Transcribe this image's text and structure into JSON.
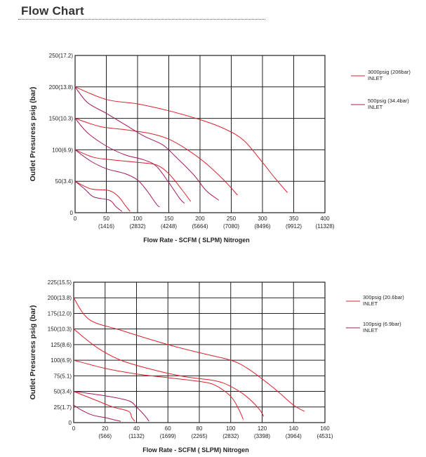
{
  "page": {
    "title": "Flow Chart"
  },
  "colors": {
    "hi": "#d9232d",
    "lo": "#a3185c",
    "grid": "#231f20"
  },
  "chart_data": [
    {
      "type": "line",
      "title": "",
      "xlabel": "Flow Rate - SCFM ( SLPM) Nitrogen",
      "ylabel": "Outlet Presuress psig (bar)",
      "xlim": [
        0,
        400
      ],
      "ylim": [
        0,
        250
      ],
      "x_ticks": [
        {
          "v": 0,
          "top": "0",
          "bot": ""
        },
        {
          "v": 50,
          "top": "50",
          "bot": "(1416)"
        },
        {
          "v": 100,
          "top": "100",
          "bot": "(2832)"
        },
        {
          "v": 150,
          "top": "150",
          "bot": "(4248)"
        },
        {
          "v": 200,
          "top": "200",
          "bot": "(5664)"
        },
        {
          "v": 250,
          "top": "250",
          "bot": "(7080)"
        },
        {
          "v": 300,
          "top": "300",
          "bot": "(8496)"
        },
        {
          "v": 350,
          "top": "350",
          "bot": "(9912)"
        },
        {
          "v": 400,
          "top": "400",
          "bot": "(11328)"
        }
      ],
      "y_ticks": [
        {
          "v": 0,
          "label": "0"
        },
        {
          "v": 50,
          "label": "50(3.4)"
        },
        {
          "v": 100,
          "label": "100(6.9)"
        },
        {
          "v": 150,
          "label": "150(10.3)"
        },
        {
          "v": 200,
          "label": "200(13.8)"
        },
        {
          "v": 250,
          "label": "250(17.2)"
        }
      ],
      "legend": [
        {
          "line1": "3000psig (206bar)",
          "line2": "INLET",
          "key": "hi"
        },
        {
          "line1": "500psig (34.4bar)",
          "line2": "INLET",
          "key": "lo"
        }
      ],
      "series": [
        {
          "name": "3000psig inlet, 200 set",
          "key": "hi",
          "points": [
            [
              0,
              200
            ],
            [
              50,
              180
            ],
            [
              100,
              173
            ],
            [
              150,
              162
            ],
            [
              200,
              148
            ],
            [
              240,
              133
            ],
            [
              270,
              115
            ],
            [
              300,
              80
            ],
            [
              320,
              55
            ],
            [
              340,
              32
            ]
          ]
        },
        {
          "name": "3000psig inlet, 150 set",
          "key": "hi",
          "points": [
            [
              0,
              150
            ],
            [
              40,
              137
            ],
            [
              80,
              132
            ],
            [
              120,
              126
            ],
            [
              150,
              117
            ],
            [
              180,
              100
            ],
            [
              210,
              78
            ],
            [
              240,
              50
            ],
            [
              260,
              28
            ]
          ]
        },
        {
          "name": "3000psig inlet, 100 set",
          "key": "hi",
          "points": [
            [
              0,
              100
            ],
            [
              30,
              88
            ],
            [
              60,
              84
            ],
            [
              100,
              80
            ],
            [
              130,
              76
            ],
            [
              150,
              62
            ],
            [
              170,
              38
            ],
            [
              185,
              18
            ]
          ]
        },
        {
          "name": "3000psig inlet, 50 set",
          "key": "hi",
          "points": [
            [
              0,
              50
            ],
            [
              25,
              38
            ],
            [
              55,
              35
            ],
            [
              70,
              25
            ],
            [
              80,
              12
            ],
            [
              88,
              2
            ]
          ]
        },
        {
          "name": "500psig inlet, 200 set",
          "key": "lo",
          "points": [
            [
              0,
              200
            ],
            [
              20,
              175
            ],
            [
              50,
              158
            ],
            [
              80,
              140
            ],
            [
              110,
              122
            ],
            [
              140,
              108
            ],
            [
              160,
              90
            ],
            [
              190,
              60
            ],
            [
              210,
              35
            ],
            [
              230,
              20
            ]
          ]
        },
        {
          "name": "500psig inlet, 150 set",
          "key": "lo",
          "points": [
            [
              0,
              150
            ],
            [
              20,
              127
            ],
            [
              50,
              106
            ],
            [
              80,
              92
            ],
            [
              110,
              84
            ],
            [
              130,
              74
            ],
            [
              150,
              48
            ],
            [
              168,
              22
            ],
            [
              175,
              15
            ]
          ]
        },
        {
          "name": "500psig inlet, 100 set",
          "key": "lo",
          "points": [
            [
              0,
              100
            ],
            [
              25,
              82
            ],
            [
              50,
              70
            ],
            [
              80,
              62
            ],
            [
              100,
              52
            ],
            [
              115,
              35
            ],
            [
              130,
              14
            ],
            [
              135,
              9
            ]
          ]
        },
        {
          "name": "500psig inlet, 50 set",
          "key": "lo",
          "points": [
            [
              0,
              50
            ],
            [
              15,
              38
            ],
            [
              30,
              25
            ],
            [
              55,
              20
            ],
            [
              65,
              10
            ],
            [
              75,
              2
            ]
          ]
        }
      ]
    },
    {
      "type": "line",
      "title": "",
      "xlabel": "Flow Rate - SCFM ( SLPM) Nitrogen",
      "ylabel": "Outlet Presuress psig (bar)",
      "xlim": [
        0,
        160
      ],
      "ylim": [
        0,
        225
      ],
      "x_ticks": [
        {
          "v": 0,
          "top": "0",
          "bot": ""
        },
        {
          "v": 20,
          "top": "20",
          "bot": "(566)"
        },
        {
          "v": 40,
          "top": "40",
          "bot": "(1132)"
        },
        {
          "v": 60,
          "top": "60",
          "bot": "(1699)"
        },
        {
          "v": 80,
          "top": "80",
          "bot": "(2265)"
        },
        {
          "v": 100,
          "top": "100",
          "bot": "(2832)"
        },
        {
          "v": 120,
          "top": "120",
          "bot": "(3398)"
        },
        {
          "v": 140,
          "top": "140",
          "bot": "(3964)"
        },
        {
          "v": 160,
          "top": "160",
          "bot": "(4531)"
        }
      ],
      "y_ticks": [
        {
          "v": 0,
          "label": "0"
        },
        {
          "v": 25,
          "label": "25(1.7)"
        },
        {
          "v": 50,
          "label": "50(3.4)"
        },
        {
          "v": 75,
          "label": "75(5.1)"
        },
        {
          "v": 100,
          "label": "100(6.9)"
        },
        {
          "v": 125,
          "label": "125(8.6)"
        },
        {
          "v": 150,
          "label": "150(10.3)"
        },
        {
          "v": 175,
          "label": "175(12.0)"
        },
        {
          "v": 200,
          "label": "200(13.8)"
        },
        {
          "v": 225,
          "label": "225(15.5)"
        }
      ],
      "legend": [
        {
          "line1": "300psig (20.6bar)",
          "line2": "INLET",
          "key": "hi"
        },
        {
          "line1": "100psig (6.9bar)",
          "line2": "INLET",
          "key": "lo"
        }
      ],
      "series": [
        {
          "name": "300psig inlet, 200 set",
          "key": "hi",
          "points": [
            [
              0,
              200
            ],
            [
              10,
              165
            ],
            [
              30,
              148
            ],
            [
              60,
              125
            ],
            [
              80,
              112
            ],
            [
              100,
              100
            ],
            [
              110,
              88
            ],
            [
              120,
              70
            ],
            [
              130,
              50
            ],
            [
              140,
              28
            ],
            [
              147,
              18
            ]
          ]
        },
        {
          "name": "300psig inlet, 150 set",
          "key": "hi",
          "points": [
            [
              0,
              150
            ],
            [
              15,
              120
            ],
            [
              30,
              100
            ],
            [
              50,
              85
            ],
            [
              70,
              74
            ],
            [
              90,
              67
            ],
            [
              100,
              58
            ],
            [
              110,
              42
            ],
            [
              118,
              22
            ],
            [
              121,
              10
            ]
          ]
        },
        {
          "name": "300psig inlet, 100 set",
          "key": "hi",
          "points": [
            [
              0,
              100
            ],
            [
              20,
              87
            ],
            [
              40,
              78
            ],
            [
              60,
              72
            ],
            [
              80,
              66
            ],
            [
              90,
              60
            ],
            [
              100,
              42
            ],
            [
              105,
              22
            ],
            [
              108,
              5
            ]
          ]
        },
        {
          "name": "300psig inlet, 50 set",
          "key": "hi",
          "points": [
            [
              0,
              50
            ],
            [
              15,
              35
            ],
            [
              25,
              25
            ],
            [
              35,
              18
            ],
            [
              37,
              8
            ],
            [
              39,
              2
            ]
          ]
        },
        {
          "name": "100psig inlet, 50 set",
          "key": "lo",
          "points": [
            [
              0,
              50
            ],
            [
              20,
              43
            ],
            [
              35,
              35
            ],
            [
              40,
              25
            ],
            [
              45,
              12
            ],
            [
              48,
              2
            ]
          ]
        },
        {
          "name": "100psig inlet, 25 set",
          "key": "lo",
          "points": [
            [
              0,
              28
            ],
            [
              5,
              20
            ],
            [
              12,
              12
            ],
            [
              20,
              8
            ],
            [
              25,
              5
            ],
            [
              30,
              2
            ]
          ]
        }
      ]
    }
  ]
}
